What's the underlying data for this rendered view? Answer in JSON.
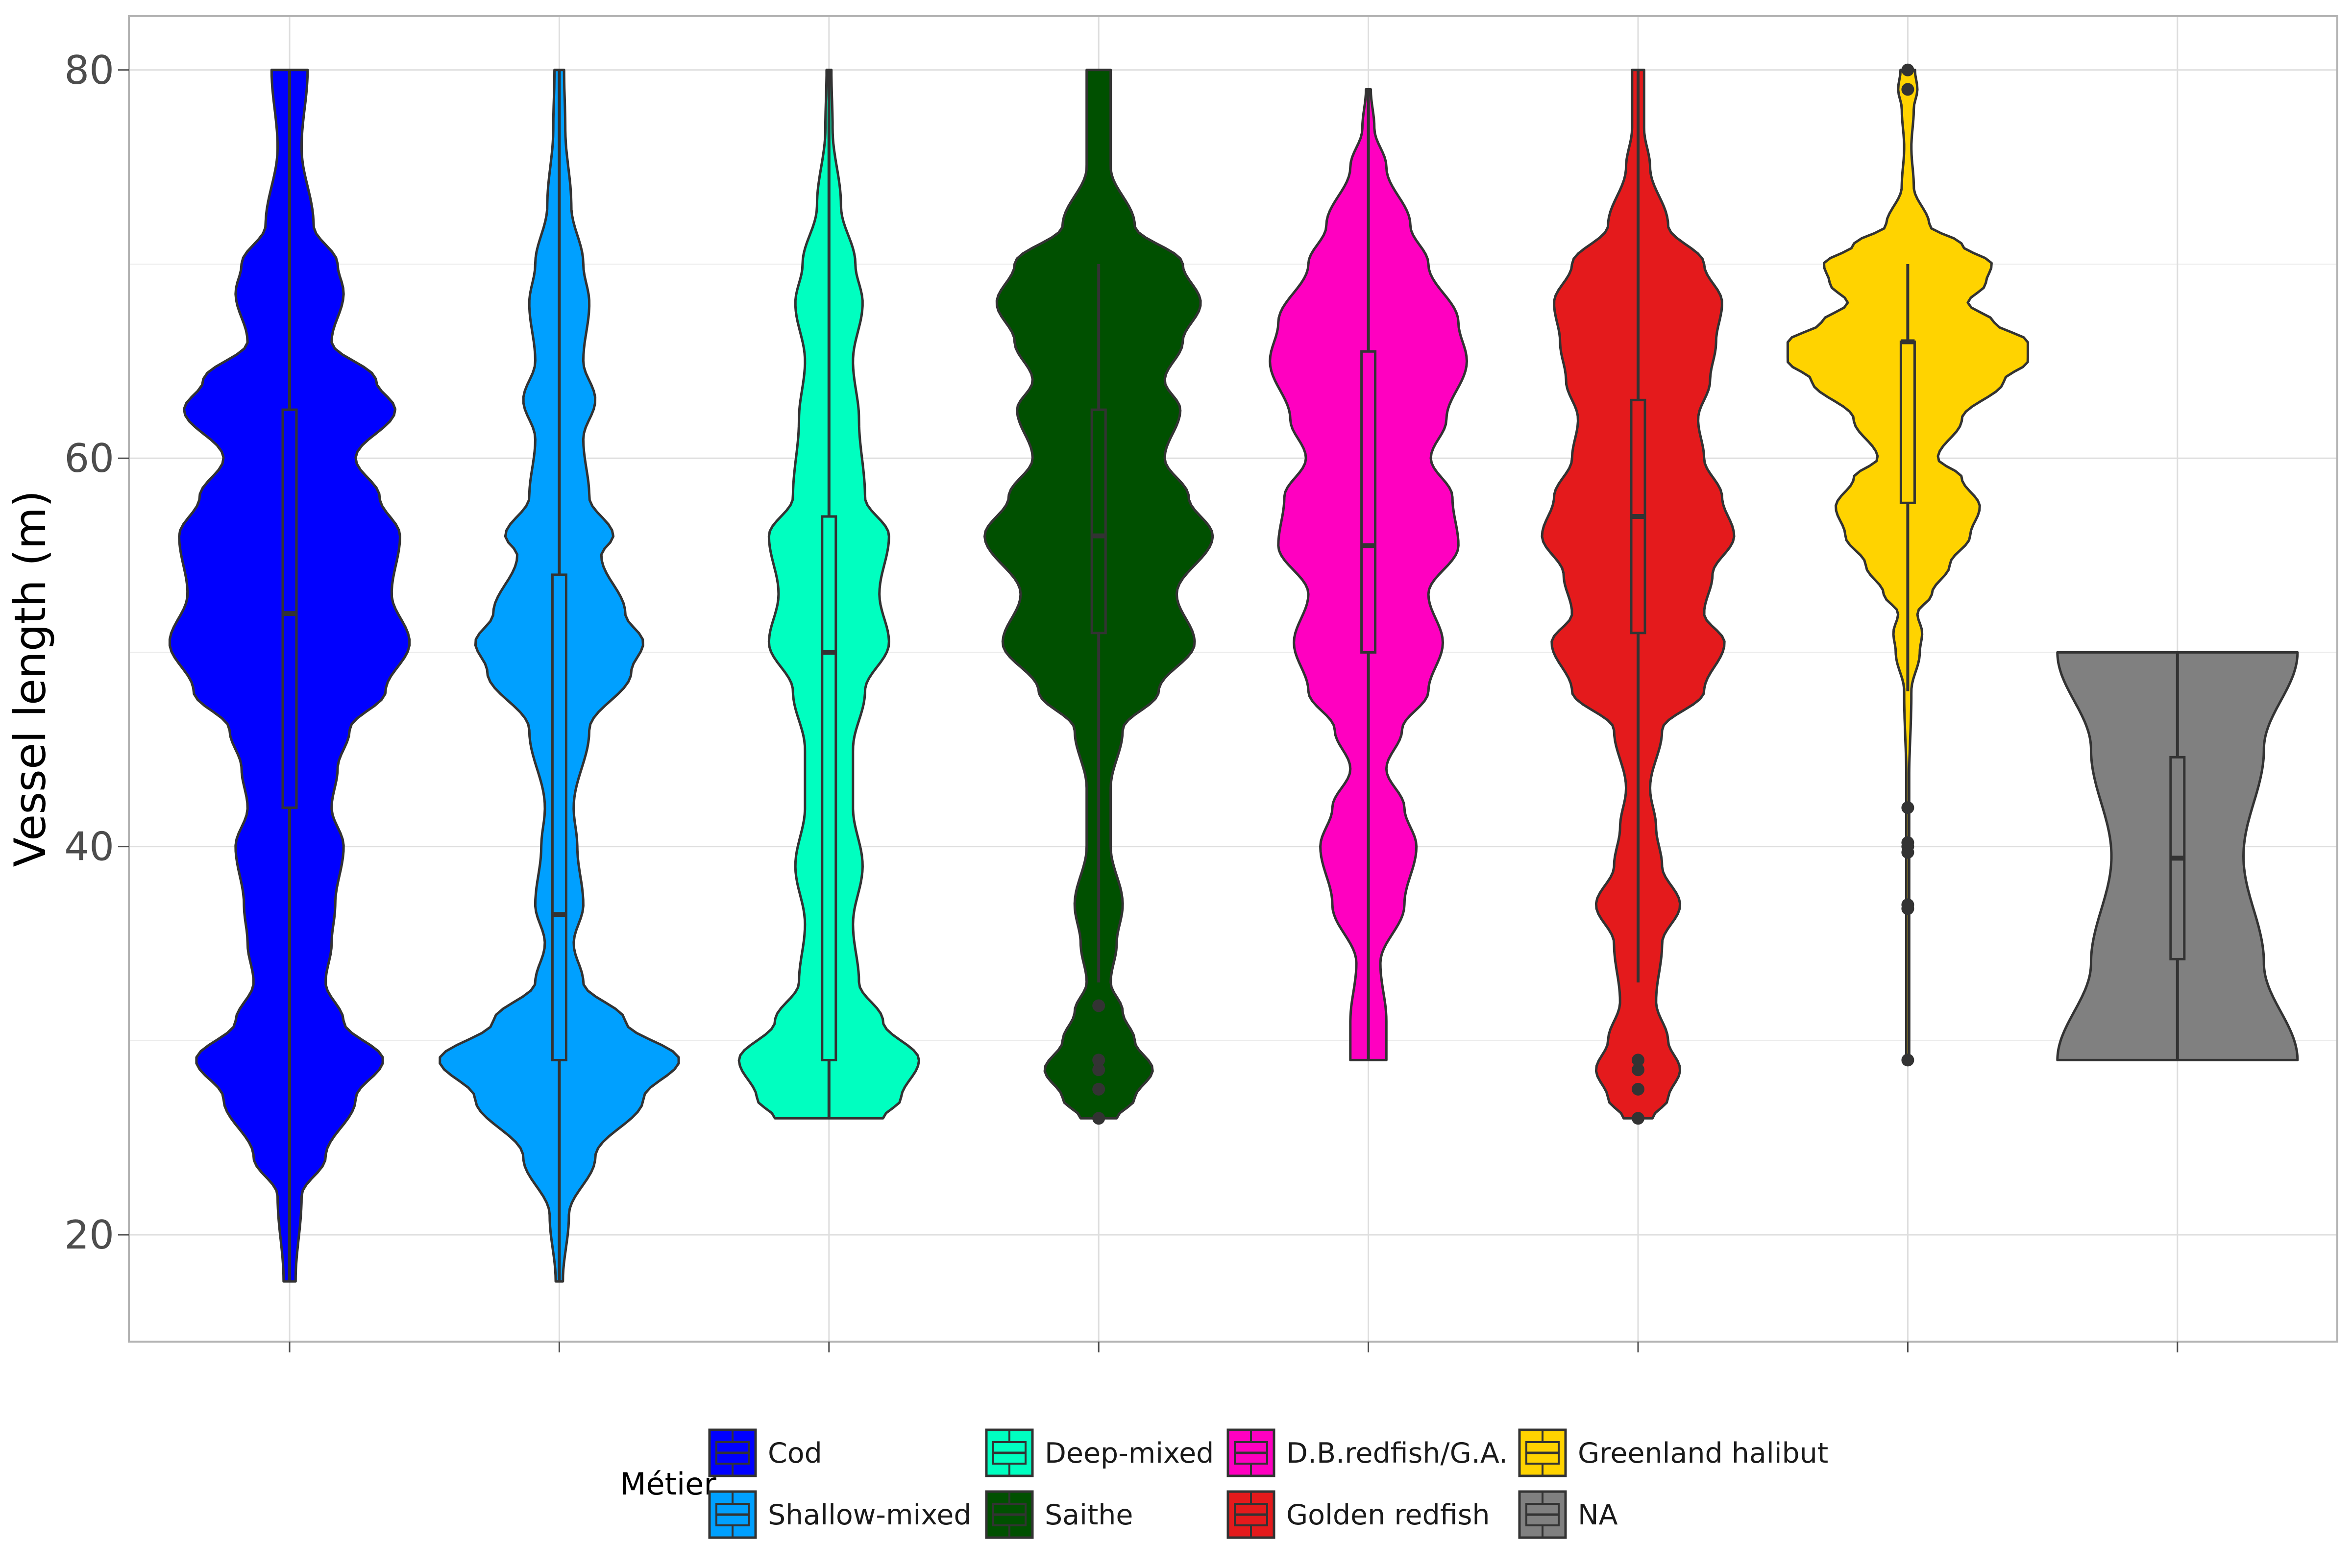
{
  "chart_data": {
    "type": "violin",
    "ylabel": "Vessel length (m)",
    "xlabel": "",
    "ylim": [
      14.6,
      83
    ],
    "yticks": [
      20,
      40,
      60,
      80
    ],
    "ygrid_minor": [
      30,
      50,
      70
    ],
    "grid": true,
    "legend": {
      "title": "Métier",
      "position": "bottom",
      "entries": [
        "Cod",
        "Shallow-mixed",
        "Deep-mixed",
        "Saithe",
        "D.B.redfish/G.A.",
        "Golden redfish",
        "Greenland halibut",
        "NA"
      ]
    },
    "series": [
      {
        "name": "Cod",
        "color": "#0000FF",
        "min": 17.6,
        "max": 80,
        "box": {
          "q1": 42,
          "median": 52,
          "q3": 62.5,
          "lower": 17.6,
          "upper": 80
        },
        "outliers": [],
        "density": [
          [
            17.6,
            0.05
          ],
          [
            22,
            0.1
          ],
          [
            24,
            0.3
          ],
          [
            27,
            0.55
          ],
          [
            29,
            0.78
          ],
          [
            31,
            0.45
          ],
          [
            33,
            0.3
          ],
          [
            35,
            0.35
          ],
          [
            37,
            0.38
          ],
          [
            40,
            0.45
          ],
          [
            42,
            0.35
          ],
          [
            44,
            0.4
          ],
          [
            46,
            0.5
          ],
          [
            48,
            0.8
          ],
          [
            50.5,
            1.0
          ],
          [
            53,
            0.85
          ],
          [
            56,
            0.92
          ],
          [
            58,
            0.75
          ],
          [
            60,
            0.55
          ],
          [
            62.5,
            0.88
          ],
          [
            64,
            0.72
          ],
          [
            66,
            0.35
          ],
          [
            68.5,
            0.45
          ],
          [
            70,
            0.4
          ],
          [
            72,
            0.2
          ],
          [
            76,
            0.1
          ],
          [
            80,
            0.15
          ]
        ]
      },
      {
        "name": "Shallow-mixed",
        "color": "#00A0FF",
        "min": 17.6,
        "max": 80,
        "box": {
          "q1": 29,
          "median": 36.5,
          "q3": 54,
          "lower": 17.6,
          "upper": 80
        },
        "outliers": [],
        "density": [
          [
            17.6,
            0.03
          ],
          [
            21,
            0.08
          ],
          [
            24,
            0.3
          ],
          [
            27,
            0.7
          ],
          [
            29,
            1.0
          ],
          [
            31,
            0.55
          ],
          [
            33,
            0.2
          ],
          [
            35,
            0.12
          ],
          [
            37,
            0.2
          ],
          [
            40,
            0.15
          ],
          [
            42,
            0.12
          ],
          [
            46,
            0.25
          ],
          [
            49,
            0.6
          ],
          [
            50.5,
            0.7
          ],
          [
            52,
            0.55
          ],
          [
            55,
            0.35
          ],
          [
            56,
            0.45
          ],
          [
            58,
            0.25
          ],
          [
            61,
            0.2
          ],
          [
            63,
            0.3
          ],
          [
            65,
            0.2
          ],
          [
            68,
            0.25
          ],
          [
            70,
            0.2
          ],
          [
            73,
            0.1
          ],
          [
            77,
            0.05
          ],
          [
            80,
            0.04
          ]
        ]
      },
      {
        "name": "Deep-mixed",
        "color": "#00FFC0",
        "min": 26,
        "max": 80,
        "box": {
          "q1": 29,
          "median": 50,
          "q3": 57,
          "lower": 26,
          "upper": 80
        },
        "outliers": [],
        "density": [
          [
            26,
            0.45
          ],
          [
            27,
            0.6
          ],
          [
            29,
            0.75
          ],
          [
            31,
            0.45
          ],
          [
            33,
            0.25
          ],
          [
            36,
            0.2
          ],
          [
            39,
            0.28
          ],
          [
            42,
            0.2
          ],
          [
            45,
            0.2
          ],
          [
            48,
            0.3
          ],
          [
            50.5,
            0.5
          ],
          [
            53,
            0.42
          ],
          [
            56,
            0.5
          ],
          [
            58,
            0.3
          ],
          [
            62,
            0.25
          ],
          [
            65,
            0.2
          ],
          [
            68,
            0.28
          ],
          [
            70,
            0.22
          ],
          [
            73,
            0.1
          ],
          [
            77,
            0.03
          ],
          [
            80,
            0.02
          ]
        ]
      },
      {
        "name": "Saithe",
        "color": "#005000",
        "min": 26,
        "max": 80,
        "box": {
          "q1": 51,
          "median": 56,
          "q3": 62.5,
          "lower": 33,
          "upper": 70
        },
        "outliers": [
          26,
          27.5,
          28.5,
          29,
          31.8
        ],
        "density": [
          [
            26,
            0.15
          ],
          [
            27,
            0.3
          ],
          [
            28.5,
            0.45
          ],
          [
            30,
            0.3
          ],
          [
            31.5,
            0.2
          ],
          [
            33,
            0.1
          ],
          [
            35,
            0.15
          ],
          [
            37,
            0.2
          ],
          [
            40,
            0.1
          ],
          [
            43,
            0.1
          ],
          [
            46,
            0.2
          ],
          [
            48,
            0.5
          ],
          [
            50.5,
            0.8
          ],
          [
            53,
            0.65
          ],
          [
            56,
            0.95
          ],
          [
            58,
            0.75
          ],
          [
            60,
            0.55
          ],
          [
            62.5,
            0.68
          ],
          [
            64,
            0.55
          ],
          [
            66,
            0.7
          ],
          [
            68,
            0.85
          ],
          [
            70,
            0.7
          ],
          [
            72,
            0.3
          ],
          [
            75,
            0.1
          ],
          [
            80,
            0.1
          ]
        ]
      },
      {
        "name": "D.B.redfish/G.A.",
        "color": "#FF00C0",
        "min": 29,
        "max": 79,
        "box": {
          "q1": 50,
          "median": 55.5,
          "q3": 65.5,
          "lower": 29,
          "upper": 79
        },
        "outliers": [],
        "density": [
          [
            29,
            0.15
          ],
          [
            31,
            0.15
          ],
          [
            34,
            0.1
          ],
          [
            37,
            0.3
          ],
          [
            40,
            0.4
          ],
          [
            42,
            0.3
          ],
          [
            44,
            0.15
          ],
          [
            46,
            0.28
          ],
          [
            48,
            0.5
          ],
          [
            50.5,
            0.62
          ],
          [
            53,
            0.5
          ],
          [
            55.5,
            0.75
          ],
          [
            58,
            0.7
          ],
          [
            60,
            0.52
          ],
          [
            62,
            0.65
          ],
          [
            65,
            0.82
          ],
          [
            67,
            0.75
          ],
          [
            70,
            0.5
          ],
          [
            72,
            0.35
          ],
          [
            75,
            0.15
          ],
          [
            77,
            0.05
          ],
          [
            79,
            0.02
          ]
        ]
      },
      {
        "name": "Golden redfish",
        "color": "#E41A1C",
        "min": 26,
        "max": 80,
        "box": {
          "q1": 51,
          "median": 57,
          "q3": 63,
          "lower": 33,
          "upper": 80
        },
        "outliers": [
          26,
          27.5,
          28.5,
          29
        ],
        "density": [
          [
            26,
            0.12
          ],
          [
            27,
            0.25
          ],
          [
            28.5,
            0.35
          ],
          [
            30,
            0.25
          ],
          [
            32,
            0.15
          ],
          [
            35,
            0.2
          ],
          [
            37,
            0.35
          ],
          [
            39,
            0.2
          ],
          [
            41,
            0.15
          ],
          [
            43,
            0.1
          ],
          [
            46,
            0.2
          ],
          [
            48,
            0.55
          ],
          [
            50.5,
            0.72
          ],
          [
            52,
            0.55
          ],
          [
            54,
            0.62
          ],
          [
            56,
            0.8
          ],
          [
            58,
            0.7
          ],
          [
            60,
            0.55
          ],
          [
            62,
            0.5
          ],
          [
            64,
            0.6
          ],
          [
            66,
            0.65
          ],
          [
            68,
            0.7
          ],
          [
            70,
            0.55
          ],
          [
            72,
            0.25
          ],
          [
            75,
            0.1
          ],
          [
            77,
            0.05
          ],
          [
            80,
            0.05
          ]
        ]
      },
      {
        "name": "Greenland halibut",
        "color": "#FFD300",
        "min": 29,
        "max": 80,
        "box": {
          "q1": 57.7,
          "median": 66,
          "q3": 66,
          "lower": 48,
          "upper": 70
        },
        "outliers": [
          29,
          36.8,
          37,
          39.7,
          40,
          40.2,
          42,
          79,
          80
        ],
        "density": [
          [
            43,
            0.01
          ],
          [
            48,
            0.03
          ],
          [
            50,
            0.1
          ],
          [
            51,
            0.12
          ],
          [
            52,
            0.08
          ],
          [
            53,
            0.2
          ],
          [
            54.5,
            0.35
          ],
          [
            56,
            0.52
          ],
          [
            57.5,
            0.6
          ],
          [
            59,
            0.45
          ],
          [
            60,
            0.25
          ],
          [
            62,
            0.45
          ],
          [
            64,
            0.8
          ],
          [
            65,
            1.0
          ],
          [
            66,
            1.0
          ],
          [
            67,
            0.72
          ],
          [
            68,
            0.5
          ],
          [
            69,
            0.65
          ],
          [
            70,
            0.7
          ],
          [
            71,
            0.45
          ],
          [
            72,
            0.18
          ],
          [
            74,
            0.05
          ],
          [
            76,
            0.03
          ],
          [
            78,
            0.05
          ],
          [
            79,
            0.08
          ],
          [
            80,
            0.06
          ]
        ]
      },
      {
        "name": "NA",
        "color": "#808080",
        "min": 29,
        "max": 50,
        "box": {
          "q1": 34.2,
          "median": 39.4,
          "q3": 44.6,
          "lower": 29,
          "upper": 50
        },
        "outliers": [],
        "density": [
          [
            29,
            1.0
          ],
          [
            34,
            0.72
          ],
          [
            39.5,
            0.55
          ],
          [
            45,
            0.72
          ],
          [
            50,
            1.0
          ]
        ]
      }
    ]
  }
}
